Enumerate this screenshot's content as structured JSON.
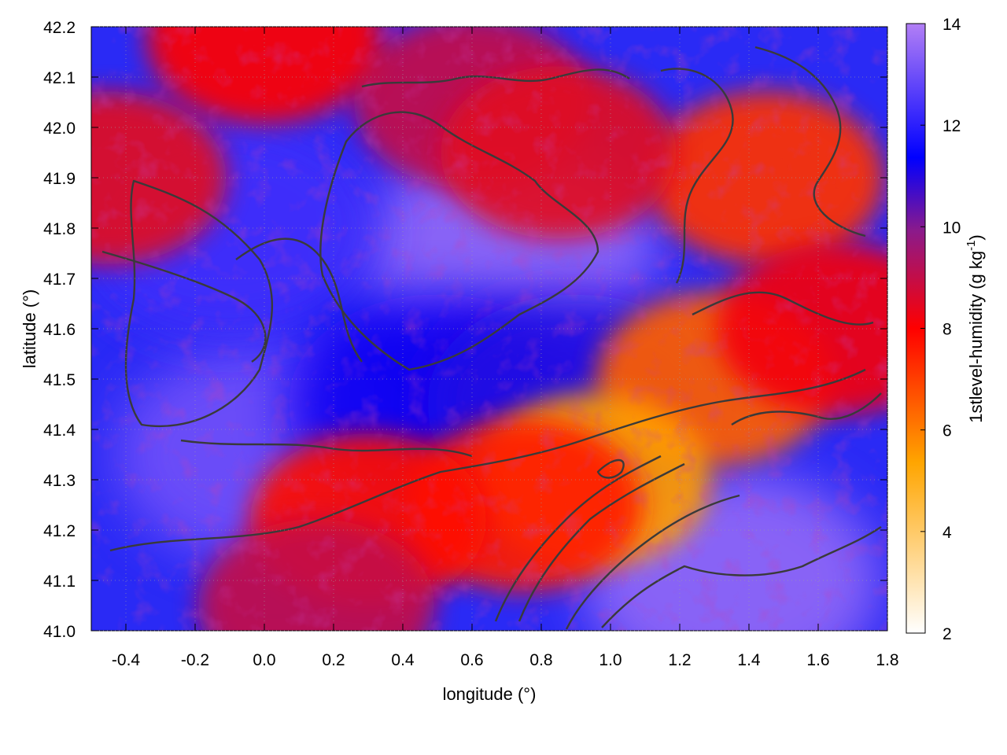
{
  "chart_data": {
    "type": "heatmap",
    "title": "",
    "xlabel": "longitude (°)",
    "ylabel": "latitude (°)",
    "xlim": [
      -0.5,
      1.8
    ],
    "ylim": [
      41.0,
      42.2
    ],
    "xticks": [
      -0.4,
      -0.2,
      0.0,
      0.2,
      0.4,
      0.6,
      0.8,
      1.0,
      1.2,
      1.4,
      1.6,
      1.8
    ],
    "xtick_labels": [
      "-0.4",
      "-0.2",
      "0.0",
      "0.2",
      "0.4",
      "0.6",
      "0.8",
      "1.0",
      "1.2",
      "1.4",
      "1.6",
      "1.8"
    ],
    "yticks": [
      41.0,
      41.1,
      41.2,
      41.3,
      41.4,
      41.5,
      41.6,
      41.7,
      41.8,
      41.9,
      42.0,
      42.1,
      42.2
    ],
    "ytick_labels": [
      "41.0",
      "41.1",
      "41.2",
      "41.3",
      "41.4",
      "41.5",
      "41.6",
      "41.7",
      "41.8",
      "41.9",
      "42.0",
      "42.1",
      "42.2"
    ],
    "grid": true,
    "colorbar": {
      "label": "1stlevel-humidity (g kg",
      "label_superscript": "-1",
      "label_suffix": ")",
      "range": [
        2,
        14
      ],
      "ticks": [
        2,
        4,
        6,
        8,
        10,
        12,
        14
      ],
      "tick_labels": [
        "2",
        "4",
        "6",
        "8",
        "10",
        "12",
        "14"
      ],
      "colors": [
        "#ffffff",
        "#ffa500",
        "#ff0000",
        "#8b1a8b",
        "#0000ff",
        "#b27ff5"
      ]
    },
    "field_regions": [
      {
        "lon": 0.7,
        "lat": 41.75,
        "value": 13.5
      },
      {
        "lon": 0.0,
        "lat": 41.35,
        "value": 13.0
      },
      {
        "lon": 1.35,
        "lat": 41.1,
        "value": 13.5
      },
      {
        "lon": -0.1,
        "lat": 41.8,
        "value": 12.3
      },
      {
        "lon": 0.5,
        "lat": 41.45,
        "value": 11.2
      },
      {
        "lon": 0.9,
        "lat": 41.45,
        "value": 11.0
      },
      {
        "lon": 1.45,
        "lat": 41.9,
        "value": 7.2
      },
      {
        "lon": 1.3,
        "lat": 41.5,
        "value": 6.5
      },
      {
        "lon": 0.95,
        "lat": 41.3,
        "value": 5.5
      },
      {
        "lon": 0.75,
        "lat": 41.25,
        "value": 7.5
      },
      {
        "lon": 0.3,
        "lat": 41.22,
        "value": 7.8
      },
      {
        "lon": 0.6,
        "lat": 42.05,
        "value": 9.0
      },
      {
        "lon": 0.85,
        "lat": 41.95,
        "value": 8.5
      },
      {
        "lon": 1.65,
        "lat": 41.6,
        "value": 8.2
      },
      {
        "lon": 0.15,
        "lat": 41.05,
        "value": 9.0
      },
      {
        "lon": -0.45,
        "lat": 41.9,
        "value": 8.5
      },
      {
        "lon": 0.0,
        "lat": 42.18,
        "value": 8.0
      }
    ]
  }
}
